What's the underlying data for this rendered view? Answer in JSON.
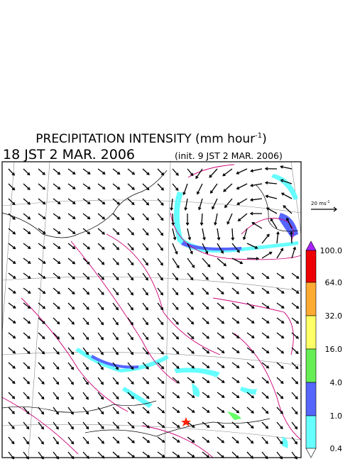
{
  "header": {
    "title": {
      "main": "PRECIPITATION INTENSITY (mm hour",
      "sup": "-1",
      "end": ")"
    },
    "valid_time": "18 JST 2 MAR. 2006",
    "init_time": "(init. 9 JST 2 MAR. 2006)"
  },
  "reference_vector": {
    "label": "20 ms",
    "sup": "-1"
  },
  "colorbar": {
    "labels": [
      "100.0",
      "64.0",
      "32.0",
      "16.0",
      "4.0",
      "1.0",
      "0.4"
    ]
  }
}
